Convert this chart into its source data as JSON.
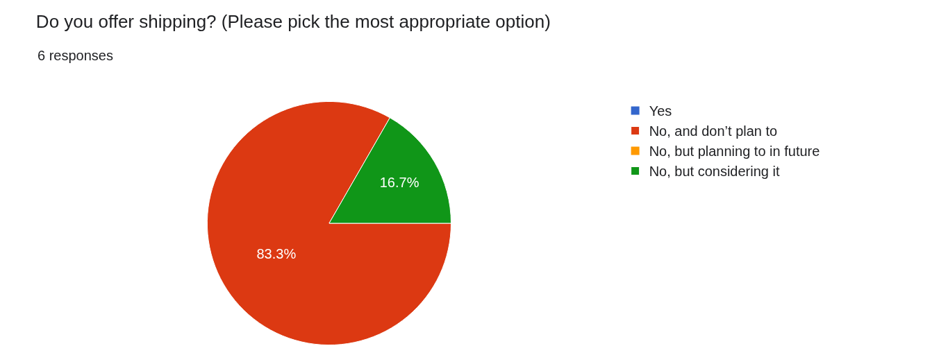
{
  "chart_data": {
    "type": "pie",
    "title": "Do you offer shipping? (Please pick the most appropriate option)",
    "subtitle": "6 responses",
    "categories": [
      "Yes",
      "No, and don’t plan to",
      "No, but planning to in future",
      "No, but considering it"
    ],
    "values": [
      0,
      83.3,
      0,
      16.7
    ],
    "colors": [
      "#3366cc",
      "#dc3912",
      "#ff9900",
      "#109618"
    ],
    "value_labels": [
      null,
      "83.3%",
      null,
      "16.7%"
    ],
    "legend": "top right"
  }
}
